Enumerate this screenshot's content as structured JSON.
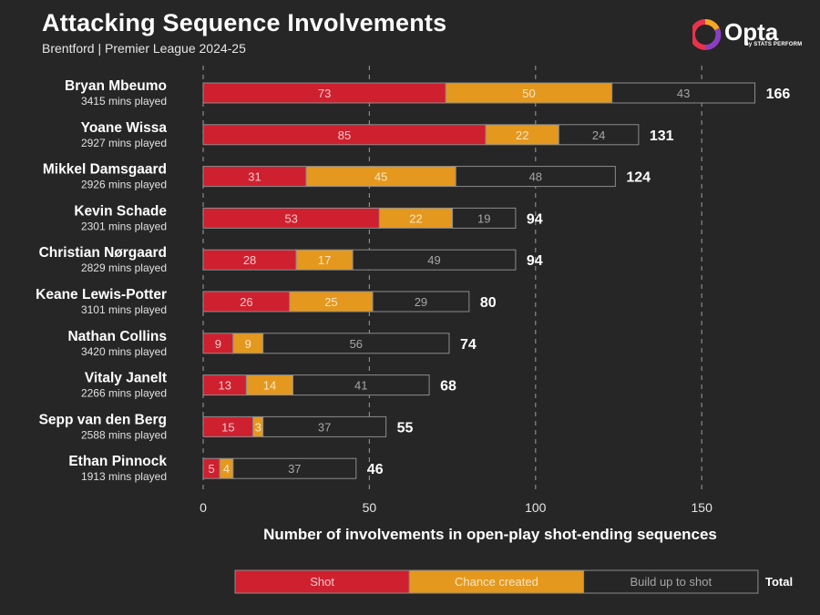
{
  "header": {
    "title": "Attacking Sequence Involvements",
    "subtitle": "Brentford | Premier League 2024-25"
  },
  "logo": {
    "word": "Opta",
    "sub": "by STATS PERFORM",
    "colors": [
      "#e8334a",
      "#f5a623",
      "#8b3fbf"
    ]
  },
  "colors": {
    "background": "#262626",
    "shot": "#cf202f",
    "chance": "#e4981e",
    "buildup": "#262626",
    "buildup_text": "#a6a6a6",
    "outline": "#8c8c8c"
  },
  "chart_data": {
    "type": "bar",
    "orientation": "horizontal",
    "stacked": true,
    "xlabel": "Number of involvements in open-play shot-ending sequences",
    "xlim": [
      0,
      166
    ],
    "xticks": [
      0,
      50,
      100,
      150
    ],
    "grid": "dashed vertical",
    "players": [
      {
        "name": "Bryan Mbeumo",
        "minutes": "3415 mins played",
        "shot": 73,
        "chance": 50,
        "buildup": 43,
        "total": 166
      },
      {
        "name": "Yoane Wissa",
        "minutes": "2927 mins played",
        "shot": 85,
        "chance": 22,
        "buildup": 24,
        "total": 131
      },
      {
        "name": "Mikkel Damsgaard",
        "minutes": "2926 mins played",
        "shot": 31,
        "chance": 45,
        "buildup": 48,
        "total": 124
      },
      {
        "name": "Kevin Schade",
        "minutes": "2301 mins played",
        "shot": 53,
        "chance": 22,
        "buildup": 19,
        "total": 94
      },
      {
        "name": "Christian Nørgaard",
        "minutes": "2829 mins played",
        "shot": 28,
        "chance": 17,
        "buildup": 49,
        "total": 94
      },
      {
        "name": "Keane Lewis-Potter",
        "minutes": "3101 mins played",
        "shot": 26,
        "chance": 25,
        "buildup": 29,
        "total": 80
      },
      {
        "name": "Nathan Collins",
        "minutes": "3420 mins played",
        "shot": 9,
        "chance": 9,
        "buildup": 56,
        "total": 74
      },
      {
        "name": "Vitaly Janelt",
        "minutes": "2266 mins played",
        "shot": 13,
        "chance": 14,
        "buildup": 41,
        "total": 68
      },
      {
        "name": "Sepp van den Berg",
        "minutes": "2588 mins played",
        "shot": 15,
        "chance": 3,
        "buildup": 37,
        "total": 55
      },
      {
        "name": "Ethan Pinnock",
        "minutes": "1913 mins played",
        "shot": 5,
        "chance": 4,
        "buildup": 37,
        "total": 46
      }
    ],
    "legend": {
      "placement": "bottom",
      "items": [
        "Shot",
        "Chance created",
        "Build up to shot"
      ],
      "total_label": "Total"
    }
  }
}
